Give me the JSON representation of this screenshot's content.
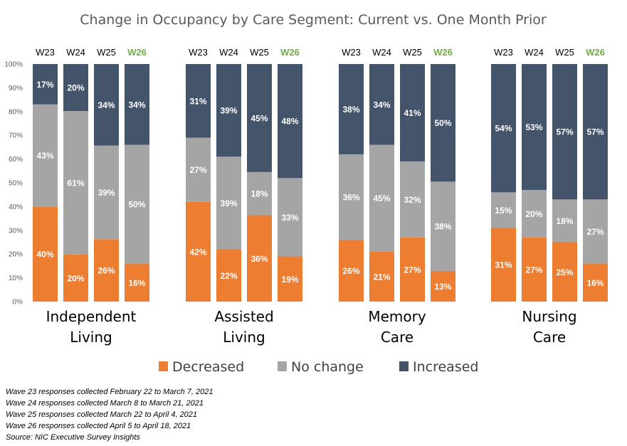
{
  "chart_data": {
    "type": "bar",
    "stacked": true,
    "title": "Change in Occupancy by Care Segment: Current vs. One Month Prior",
    "y_ticks": [
      "0%",
      "10%",
      "20%",
      "30%",
      "40%",
      "50%",
      "60%",
      "70%",
      "80%",
      "90%",
      "100%"
    ],
    "ylim": [
      0,
      100
    ],
    "highlight_wave": "W26",
    "series": [
      {
        "name": "Decreased",
        "color": "#ed7d31"
      },
      {
        "name": "No change",
        "color": "#a5a5a5"
      },
      {
        "name": "Increased",
        "color": "#44546a"
      }
    ],
    "groups": [
      {
        "label_lines": [
          "Independent",
          "Living"
        ],
        "bars": [
          {
            "wave": "W23",
            "values": [
              40,
              43,
              17
            ]
          },
          {
            "wave": "W24",
            "values": [
              20,
              61,
              20
            ]
          },
          {
            "wave": "W25",
            "values": [
              26,
              39,
              34
            ]
          },
          {
            "wave": "W26",
            "values": [
              16,
              50,
              34
            ]
          }
        ]
      },
      {
        "label_lines": [
          "Assisted",
          "Living"
        ],
        "bars": [
          {
            "wave": "W23",
            "values": [
              42,
              27,
              31
            ]
          },
          {
            "wave": "W24",
            "values": [
              22,
              39,
              39
            ]
          },
          {
            "wave": "W25",
            "values": [
              36,
              18,
              45
            ]
          },
          {
            "wave": "W26",
            "values": [
              19,
              33,
              48
            ]
          }
        ]
      },
      {
        "label_lines": [
          "Memory",
          "Care"
        ],
        "bars": [
          {
            "wave": "W23",
            "values": [
              26,
              36,
              38
            ]
          },
          {
            "wave": "W24",
            "values": [
              21,
              45,
              34
            ]
          },
          {
            "wave": "W25",
            "values": [
              27,
              32,
              41
            ]
          },
          {
            "wave": "W26",
            "values": [
              13,
              38,
              50
            ]
          }
        ]
      },
      {
        "label_lines": [
          "Nursing",
          "Care"
        ],
        "bars": [
          {
            "wave": "W23",
            "values": [
              31,
              15,
              54
            ]
          },
          {
            "wave": "W24",
            "values": [
              27,
              20,
              53
            ]
          },
          {
            "wave": "W25",
            "values": [
              25,
              18,
              57
            ]
          },
          {
            "wave": "W26",
            "values": [
              16,
              27,
              57
            ]
          }
        ]
      }
    ]
  },
  "notes": [
    "Wave 23 responses collected  February 22 to March 7, 2021",
    "Wave 24 responses collected  March 8 to March 21, 2021",
    "Wave 25 responses collected  March 22 to April 4, 2021",
    "Wave 26 responses collected  April 5 to April 18, 2021",
    "Source: NIC Executive Survey Insights"
  ]
}
